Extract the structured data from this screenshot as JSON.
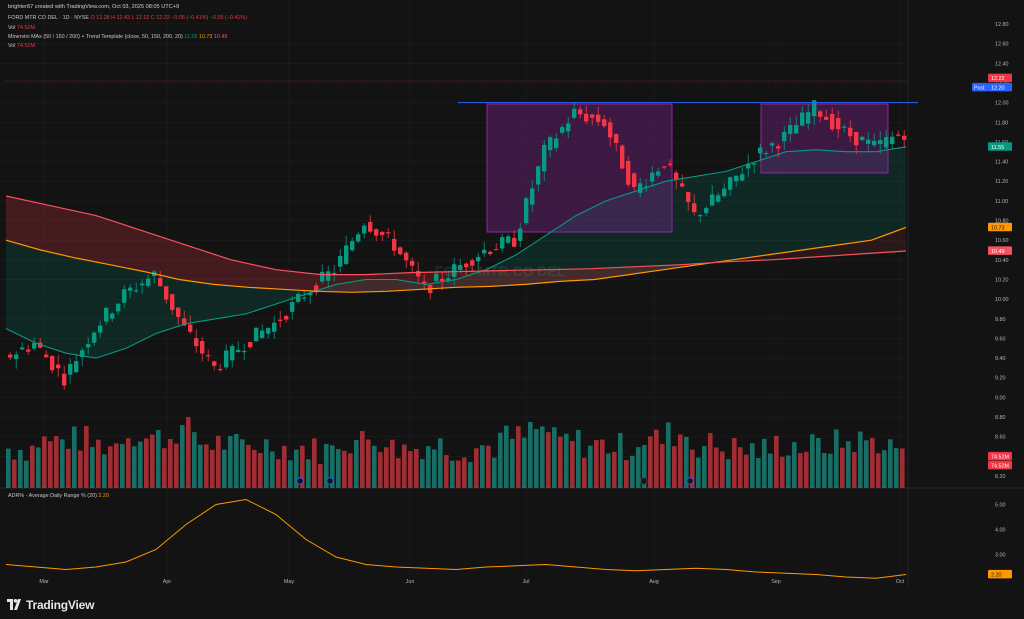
{
  "header": {
    "created_by": "brighter87 created with TradingView.com, Oct 03, 2025 08:05 UTC+9"
  },
  "legend": {
    "symbol": "FORD MTR CO DEL · 1D · NYSE",
    "ohlc": "O 12.28  H 12.43  L 12.12  C 12.22  −0.05 (−0.41%)  −0.05 (−0.41%)",
    "vol_label": "Vol",
    "vol_value": "74.52M",
    "minervini_label": "Minervini MAs (50 / 150 / 200) + Trend Template (close, 50, 150, 200, 20)",
    "ma50": "11.55",
    "ma150": "10.73",
    "ma200": "10.49",
    "vol2_label": "Vol",
    "vol2_value": "74.52M"
  },
  "adr_legend": {
    "label": "ADR% - Average Daily Range % (20)",
    "value": "2.20"
  },
  "branding": {
    "logo_text": "TradingView"
  },
  "watermark": "FORD MTR CO DEL",
  "price_axis": {
    "ticks": [
      "12.80",
      "12.60",
      "12.40",
      "12.20",
      "12.00",
      "11.80",
      "11.60",
      "11.40",
      "11.20",
      "11.00",
      "10.80",
      "10.60",
      "10.40",
      "10.20",
      "10.00",
      "9.80",
      "9.60",
      "9.40",
      "9.20",
      "9.00",
      "8.80",
      "8.60",
      "8.40",
      "8.20"
    ],
    "last_price_label": "12.22",
    "post_label": "Post",
    "post_price_label": "12.20",
    "ma50_label": "11.55",
    "ma150_label": "10.73",
    "ma200_label": "10.49",
    "vol_label_a": "74.52M",
    "vol_label_b": "74.52M"
  },
  "adr_axis": {
    "ticks": [
      "5.00",
      "4.00",
      "3.00"
    ],
    "value_label": "2.20"
  },
  "time_axis": {
    "labels": [
      "Mar",
      "Apr",
      "May",
      "Jun",
      "Jul",
      "Aug",
      "Sep",
      "Oct"
    ]
  },
  "colors": {
    "up": "#089981",
    "down": "#f23645",
    "ma50": "#089981",
    "ma150": "#ff9800",
    "ma200": "#f7525f",
    "box": "#9c27b0",
    "resistance": "#2962ff",
    "adr": "#ff9800",
    "background": "#131313"
  },
  "chart_data": {
    "type": "candlestick",
    "title": "FORD MTR CO DEL · 1D · NYSE",
    "ylim": [
      8.1,
      12.9
    ],
    "resistance_level": 12.0,
    "bases": [
      {
        "from": "Jun 20",
        "to": "Aug 4",
        "high": 12.0,
        "low": 10.7
      },
      {
        "from": "Aug 25",
        "to": "Sep 26",
        "high": 12.0,
        "low": 11.28
      }
    ],
    "candles_weekly": [
      {
        "w": "Feb 24",
        "o": 9.4,
        "c": 9.55,
        "h": 9.75,
        "l": 9.25
      },
      {
        "w": "Mar 3",
        "o": 9.55,
        "c": 9.2,
        "h": 9.85,
        "l": 9.1
      },
      {
        "w": "Mar 10",
        "o": 9.2,
        "c": 9.7,
        "h": 9.85,
        "l": 9.1
      },
      {
        "w": "Mar 17",
        "o": 9.7,
        "c": 10.05,
        "h": 10.2,
        "l": 9.6
      },
      {
        "w": "Mar 24",
        "o": 10.05,
        "c": 10.25,
        "h": 10.45,
        "l": 9.95
      },
      {
        "w": "Mar 31",
        "o": 10.25,
        "c": 9.7,
        "h": 10.35,
        "l": 9.55
      },
      {
        "w": "Apr 7",
        "o": 9.7,
        "c": 9.3,
        "h": 9.9,
        "l": 8.95
      },
      {
        "w": "Apr 14",
        "o": 9.3,
        "c": 9.55,
        "h": 9.7,
        "l": 9.2
      },
      {
        "w": "Apr 21",
        "o": 9.55,
        "c": 9.75,
        "h": 9.85,
        "l": 9.45
      },
      {
        "w": "Apr 28",
        "o": 9.75,
        "c": 10.05,
        "h": 10.15,
        "l": 9.7
      },
      {
        "w": "May 5",
        "o": 10.05,
        "c": 10.3,
        "h": 10.4,
        "l": 9.95
      },
      {
        "w": "May 12",
        "o": 10.3,
        "c": 10.8,
        "h": 10.9,
        "l": 10.25
      },
      {
        "w": "May 19",
        "o": 10.8,
        "c": 10.55,
        "h": 10.9,
        "l": 10.4
      },
      {
        "w": "May 26",
        "o": 10.55,
        "c": 10.1,
        "h": 10.6,
        "l": 9.95
      },
      {
        "w": "Jun 2",
        "o": 10.1,
        "c": 10.3,
        "h": 10.4,
        "l": 9.9
      },
      {
        "w": "Jun 9",
        "o": 10.3,
        "c": 10.5,
        "h": 10.65,
        "l": 10.25
      },
      {
        "w": "Jun 16",
        "o": 10.5,
        "c": 10.6,
        "h": 10.7,
        "l": 10.4
      },
      {
        "w": "Jun 23",
        "o": 10.6,
        "c": 11.5,
        "h": 11.6,
        "l": 10.55
      },
      {
        "w": "Jun 30",
        "o": 11.5,
        "c": 11.9,
        "h": 12.0,
        "l": 11.45
      },
      {
        "w": "Jul 7",
        "o": 11.9,
        "c": 11.8,
        "h": 11.95,
        "l": 11.6
      },
      {
        "w": "Jul 14",
        "o": 11.8,
        "c": 11.1,
        "h": 11.85,
        "l": 11.05
      },
      {
        "w": "Jul 21",
        "o": 11.1,
        "c": 11.4,
        "h": 11.45,
        "l": 11.0
      },
      {
        "w": "Jul 28",
        "o": 11.4,
        "c": 10.85,
        "h": 11.45,
        "l": 10.75
      },
      {
        "w": "Aug 4",
        "o": 10.85,
        "c": 11.1,
        "h": 11.25,
        "l": 10.8
      },
      {
        "w": "Aug 11",
        "o": 11.1,
        "c": 11.45,
        "h": 11.55,
        "l": 11.0
      },
      {
        "w": "Aug 18",
        "o": 11.45,
        "c": 11.65,
        "h": 11.75,
        "l": 11.35
      },
      {
        "w": "Aug 25",
        "o": 11.65,
        "c": 11.95,
        "h": 12.0,
        "l": 11.6
      },
      {
        "w": "Sep 1",
        "o": 11.95,
        "c": 11.7,
        "h": 11.98,
        "l": 11.55
      },
      {
        "w": "Sep 8",
        "o": 11.7,
        "c": 11.55,
        "h": 11.8,
        "l": 11.4
      },
      {
        "w": "Sep 15",
        "o": 11.55,
        "c": 11.7,
        "h": 11.8,
        "l": 11.5
      },
      {
        "w": "Sep 22",
        "o": 11.7,
        "c": 11.65,
        "h": 11.85,
        "l": 11.45
      },
      {
        "w": "Sep 29",
        "o": 11.65,
        "c": 12.22,
        "h": 12.43,
        "l": 11.6
      }
    ],
    "ma50": [
      9.7,
      9.55,
      9.45,
      9.4,
      9.5,
      9.65,
      9.75,
      9.8,
      9.85,
      9.95,
      10.05,
      10.15,
      10.2,
      10.2,
      10.15,
      10.2,
      10.3,
      10.45,
      10.65,
      10.85,
      11.0,
      11.1,
      11.2,
      11.25,
      11.3,
      11.4,
      11.5,
      11.52,
      11.5,
      11.5,
      11.55
    ],
    "ma150": [
      10.6,
      10.5,
      10.42,
      10.35,
      10.28,
      10.2,
      10.15,
      10.12,
      10.1,
      10.08,
      10.07,
      10.08,
      10.1,
      10.12,
      10.13,
      10.15,
      10.18,
      10.2,
      10.25,
      10.3,
      10.35,
      10.4,
      10.45,
      10.5,
      10.55,
      10.6,
      10.73
    ],
    "ma200": [
      11.05,
      10.95,
      10.85,
      10.7,
      10.55,
      10.4,
      10.3,
      10.25,
      10.25,
      10.27,
      10.28,
      10.29,
      10.3,
      10.31,
      10.33,
      10.35,
      10.38,
      10.4,
      10.43,
      10.46,
      10.49
    ],
    "volume_m": [
      70,
      90,
      95,
      80,
      110,
      100,
      120,
      85,
      75,
      80,
      70,
      65,
      90,
      95,
      70,
      80,
      70,
      75,
      100,
      120,
      90,
      80,
      75,
      95,
      110,
      80,
      70,
      65,
      80,
      75,
      85,
      90,
      74.52
    ],
    "adr": [
      2.6,
      2.5,
      2.4,
      2.5,
      2.7,
      3.2,
      4.2,
      5.0,
      5.2,
      4.6,
      3.6,
      2.9,
      2.6,
      2.5,
      2.45,
      2.4,
      2.5,
      2.55,
      2.6,
      2.5,
      2.4,
      2.35,
      2.4,
      2.45,
      2.4,
      2.3,
      2.25,
      2.2,
      2.1,
      2.05,
      2.2
    ]
  }
}
